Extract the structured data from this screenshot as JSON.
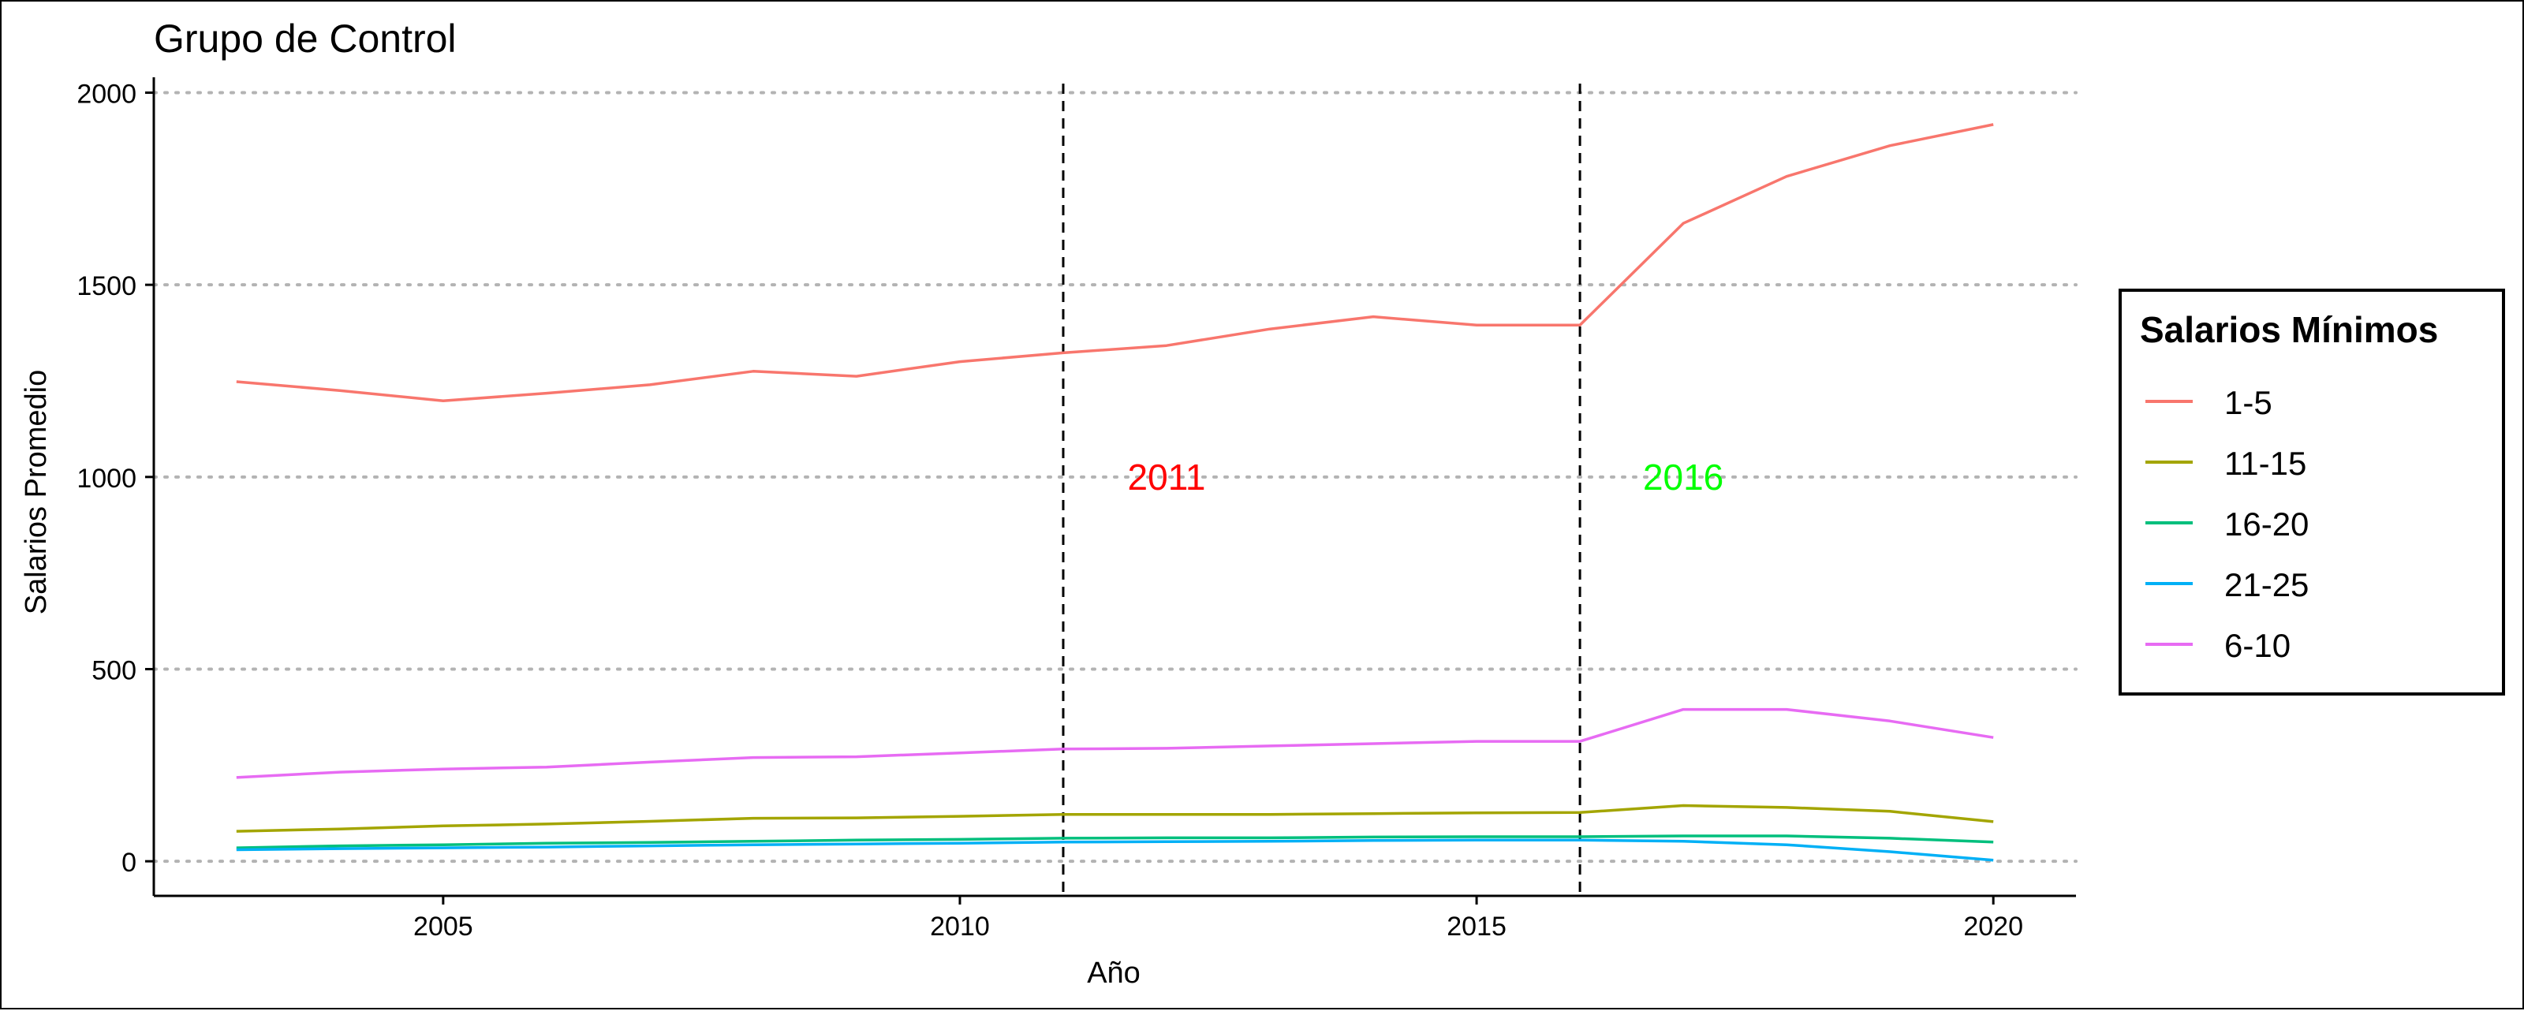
{
  "chart_data": {
    "type": "line",
    "title": "Grupo de Control",
    "xlabel": "Año",
    "ylabel": "Salarios Promedio",
    "xlim": [
      2002.2,
      2020.8
    ],
    "ylim": [
      -90,
      2040
    ],
    "x_ticks": [
      2005,
      2010,
      2015,
      2020
    ],
    "y_ticks": [
      0,
      500,
      1000,
      1500,
      2000
    ],
    "grid": "horizontal dotted",
    "legend": {
      "title": "Salarios Mínimos",
      "position": "right"
    },
    "x": [
      2003,
      2004,
      2005,
      2006,
      2007,
      2008,
      2009,
      2010,
      2011,
      2012,
      2013,
      2014,
      2015,
      2016,
      2017,
      2018,
      2019,
      2020
    ],
    "series": [
      {
        "name": "1-5",
        "color": "#F8766D",
        "values": [
          1248,
          1225,
          1198,
          1218,
          1240,
          1275,
          1262,
          1300,
          1323,
          1342,
          1385,
          1417,
          1395,
          1395,
          1660,
          1782,
          1862,
          1917
        ]
      },
      {
        "name": "11-15",
        "color": "#A3A500",
        "values": [
          78,
          84,
          92,
          97,
          104,
          112,
          113,
          117,
          122,
          122,
          122,
          124,
          126,
          127,
          145,
          140,
          130,
          103
        ]
      },
      {
        "name": "16-20",
        "color": "#00BF7D",
        "values": [
          35,
          40,
          43,
          47,
          49,
          52,
          55,
          57,
          60,
          61,
          61,
          63,
          64,
          64,
          66,
          66,
          60,
          50
        ]
      },
      {
        "name": "21-25",
        "color": "#00B0F6",
        "values": [
          30,
          33,
          35,
          37,
          40,
          43,
          45,
          47,
          50,
          51,
          52,
          54,
          55,
          55,
          52,
          43,
          25,
          3
        ]
      },
      {
        "name": "6-10",
        "color": "#E76BF3",
        "values": [
          218,
          232,
          240,
          245,
          258,
          270,
          272,
          282,
          292,
          294,
          300,
          306,
          312,
          312,
          395,
          395,
          365,
          322
        ]
      }
    ],
    "vlines": [
      {
        "x": 2011,
        "label": "2011",
        "color": "#FF0000"
      },
      {
        "x": 2016,
        "label": "2016",
        "color": "#00FF00"
      }
    ],
    "annotation_y": 1000
  }
}
